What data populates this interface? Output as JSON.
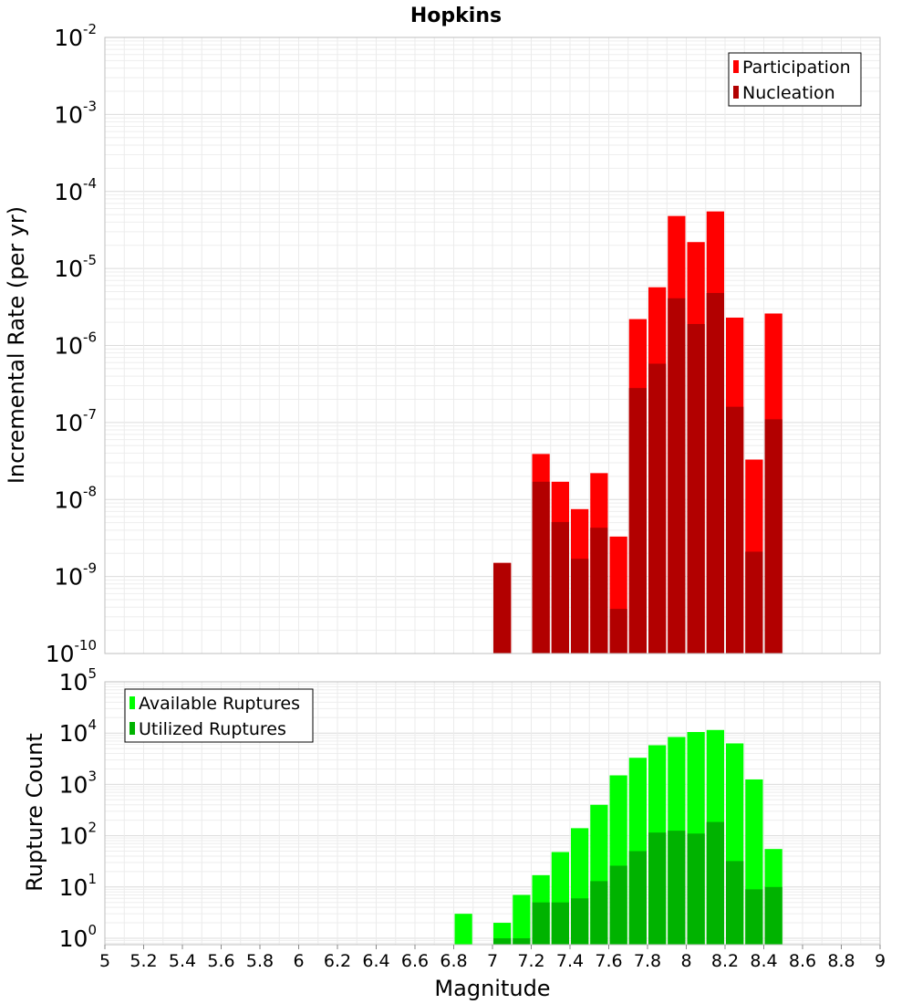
{
  "chart_data": {
    "type": "bar",
    "title": "Hopkins",
    "xlabel": "Magnitude",
    "x_ticks": [
      "5",
      "5.2",
      "5.4",
      "5.6",
      "5.8",
      "6",
      "6.2",
      "6.4",
      "6.6",
      "6.8",
      "7",
      "7.2",
      "7.4",
      "7.6",
      "7.8",
      "8",
      "8.2",
      "8.4",
      "8.6",
      "8.8",
      "9"
    ],
    "xlim": [
      5,
      9
    ],
    "bin_width": 0.1,
    "panels": [
      {
        "ylabel": "Incremental Rate (per yr)",
        "yscale": "log",
        "ylim": [
          1e-10,
          0.01
        ],
        "y_tick_exponents": [
          "-10",
          "-9",
          "-8",
          "-7",
          "-6",
          "-5",
          "-4",
          "-3",
          "-2"
        ],
        "legend_position": "top-right",
        "grid": true,
        "series": [
          {
            "name": "Participation",
            "color": "#ff0000",
            "x": [
              7.05,
              7.25,
              7.35,
              7.45,
              7.55,
              7.65,
              7.75,
              7.85,
              7.95,
              8.05,
              8.15,
              8.25,
              8.35,
              8.45
            ],
            "values": [
              1.5e-09,
              3.9e-08,
              1.7e-08,
              7.5e-09,
              2.2e-08,
              3.3e-09,
              2.2e-06,
              5.7e-06,
              4.8e-05,
              2.2e-05,
              5.5e-05,
              2.3e-06,
              3.3e-08,
              2.6e-06
            ]
          },
          {
            "name": "Nucleation",
            "color": "#b20000",
            "x": [
              7.05,
              7.25,
              7.35,
              7.45,
              7.55,
              7.65,
              7.75,
              7.85,
              7.95,
              8.05,
              8.15,
              8.25,
              8.35,
              8.45
            ],
            "values": [
              1.5e-09,
              1.7e-08,
              5.1e-09,
              1.7e-09,
              4.3e-09,
              3.8e-10,
              2.8e-07,
              5.8e-07,
              4.1e-06,
              1.9e-06,
              4.8e-06,
              1.6e-07,
              2.1e-09,
              1.1e-07
            ]
          }
        ]
      },
      {
        "ylabel": "Rupture Count",
        "yscale": "log",
        "ylim": [
          0.75,
          100000
        ],
        "y_tick_exponents": [
          "0",
          "1",
          "2",
          "3",
          "4",
          "5"
        ],
        "legend_position": "top-left",
        "grid": true,
        "series": [
          {
            "name": "Available Ruptures",
            "color": "#00ff00",
            "x": [
              6.85,
              7.05,
              7.15,
              7.25,
              7.35,
              7.45,
              7.55,
              7.65,
              7.75,
              7.85,
              7.95,
              8.05,
              8.15,
              8.25,
              8.35,
              8.45
            ],
            "values": [
              3,
              2,
              7,
              17,
              48,
              140,
              400,
              1500,
              3300,
              5800,
              8400,
              10500,
              11500,
              6300,
              1250,
              55
            ]
          },
          {
            "name": "Utilized Ruptures",
            "color": "#00b300",
            "x": [
              6.85,
              7.05,
              7.15,
              7.25,
              7.35,
              7.45,
              7.55,
              7.65,
              7.75,
              7.85,
              7.95,
              8.05,
              8.15,
              8.25,
              8.35,
              8.45
            ],
            "values": [
              0,
              1,
              1,
              5,
              5,
              6,
              13,
              26,
              50,
              115,
              125,
              110,
              185,
              32,
              9,
              10
            ]
          }
        ]
      }
    ]
  }
}
